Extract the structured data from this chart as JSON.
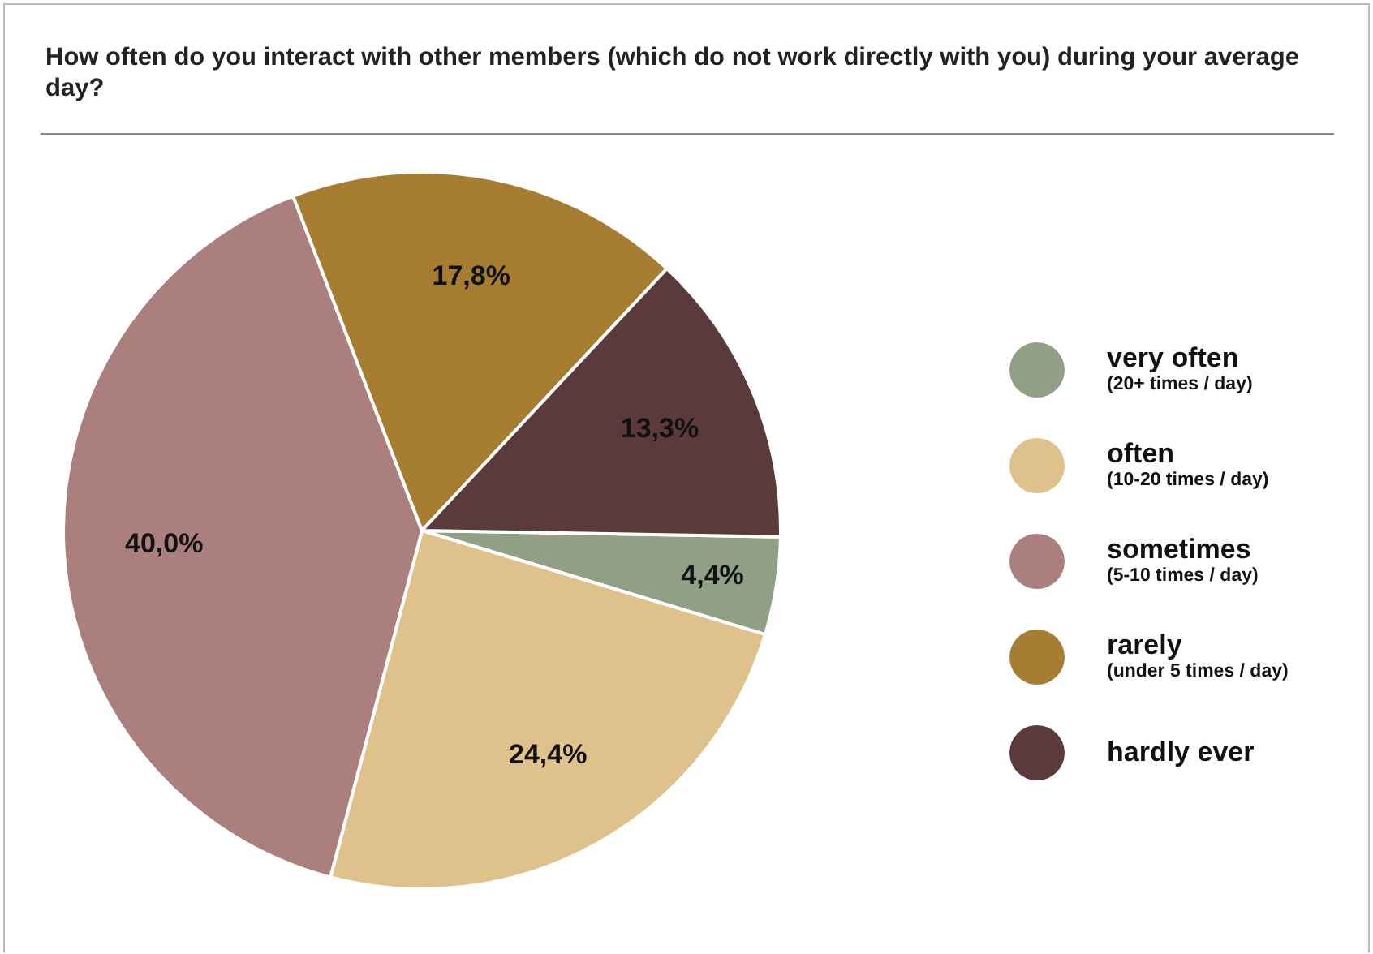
{
  "chart_data": {
    "type": "pie",
    "title": "How often do you interact with other members (which do not work directly with you) during your average day?",
    "categories": [
      "very often\n(20+ times / day)",
      "often\n(10-20 times / day)",
      "sometimes\n(5-10 times / day)",
      "rarely\n(under 5 times / day)",
      "hardly ever"
    ],
    "values": [
      4.4,
      24.4,
      40.0,
      17.8,
      13.3
    ],
    "colors": [
      "#919f84",
      "#dfc18c",
      "#ab7f7e",
      "#a77d31",
      "#5b3a3c"
    ],
    "value_labels": [
      "4,4%",
      "24,4%",
      "40,0%",
      "17,8%",
      "13,3%"
    ],
    "legend": "right"
  }
}
